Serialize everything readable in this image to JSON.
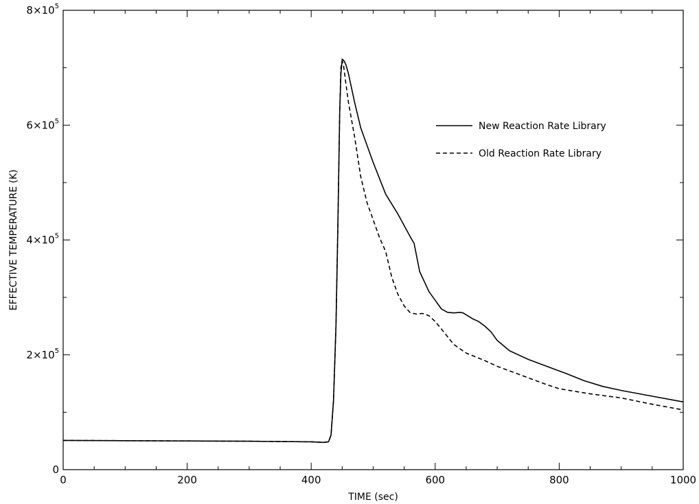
{
  "chart_data": {
    "type": "line",
    "title": "",
    "xlabel": "TIME (sec)",
    "ylabel": "EFFECTIVE TEMPERATURE (K)",
    "xlim": [
      0,
      1000
    ],
    "ylim": [
      0,
      800000
    ],
    "x_ticks": [
      {
        "value": 0,
        "label": "0"
      },
      {
        "value": 200,
        "label": "200"
      },
      {
        "value": 400,
        "label": "400"
      },
      {
        "value": 600,
        "label": "600"
      },
      {
        "value": 800,
        "label": "800"
      },
      {
        "value": 1000,
        "label": "1000"
      }
    ],
    "y_ticks": [
      {
        "value": 0,
        "mantissa": "0",
        "exponent": ""
      },
      {
        "value": 200000,
        "mantissa": "2×10",
        "exponent": "5"
      },
      {
        "value": 400000,
        "mantissa": "4×10",
        "exponent": "5"
      },
      {
        "value": 600000,
        "mantissa": "6×10",
        "exponent": "5"
      },
      {
        "value": 800000,
        "mantissa": "8×10",
        "exponent": "5"
      }
    ],
    "grid": false,
    "legend_position": "top-right",
    "series": [
      {
        "name": "New Reaction Rate Library",
        "style": "solid",
        "points": [
          [
            0,
            51000
          ],
          [
            100,
            50500
          ],
          [
            200,
            50000
          ],
          [
            300,
            49500
          ],
          [
            400,
            48500
          ],
          [
            420,
            47500
          ],
          [
            428,
            48500
          ],
          [
            432,
            60000
          ],
          [
            436,
            120000
          ],
          [
            440,
            250000
          ],
          [
            443,
            420000
          ],
          [
            446,
            620000
          ],
          [
            448,
            690000
          ],
          [
            450,
            715000
          ],
          [
            453,
            712000
          ],
          [
            456,
            705000
          ],
          [
            460,
            690000
          ],
          [
            470,
            640000
          ],
          [
            480,
            595000
          ],
          [
            500,
            535000
          ],
          [
            520,
            480000
          ],
          [
            540,
            445000
          ],
          [
            560,
            405000
          ],
          [
            566,
            394000
          ],
          [
            575,
            345000
          ],
          [
            590,
            310000
          ],
          [
            600,
            295000
          ],
          [
            610,
            280000
          ],
          [
            620,
            274000
          ],
          [
            630,
            273000
          ],
          [
            640,
            274000
          ],
          [
            645,
            273000
          ],
          [
            660,
            263000
          ],
          [
            670,
            258000
          ],
          [
            680,
            250000
          ],
          [
            690,
            240000
          ],
          [
            700,
            225000
          ],
          [
            720,
            207000
          ],
          [
            750,
            192000
          ],
          [
            780,
            180000
          ],
          [
            800,
            172000
          ],
          [
            810,
            168000
          ],
          [
            840,
            155000
          ],
          [
            870,
            145000
          ],
          [
            900,
            138000
          ],
          [
            950,
            128000
          ],
          [
            1000,
            118000
          ]
        ]
      },
      {
        "name": "Old Reaction Rate Library",
        "style": "dashed",
        "points": [
          [
            0,
            51000
          ],
          [
            100,
            50500
          ],
          [
            200,
            50000
          ],
          [
            300,
            49500
          ],
          [
            400,
            48500
          ],
          [
            420,
            47500
          ],
          [
            428,
            48500
          ],
          [
            432,
            60000
          ],
          [
            436,
            120000
          ],
          [
            440,
            250000
          ],
          [
            443,
            420000
          ],
          [
            446,
            620000
          ],
          [
            448,
            700000
          ],
          [
            450,
            712000
          ],
          [
            452,
            705000
          ],
          [
            455,
            680000
          ],
          [
            460,
            640000
          ],
          [
            470,
            580000
          ],
          [
            480,
            510000
          ],
          [
            490,
            465000
          ],
          [
            500,
            435000
          ],
          [
            510,
            405000
          ],
          [
            520,
            380000
          ],
          [
            530,
            335000
          ],
          [
            540,
            305000
          ],
          [
            550,
            285000
          ],
          [
            560,
            273000
          ],
          [
            570,
            271000
          ],
          [
            580,
            272000
          ],
          [
            590,
            268000
          ],
          [
            600,
            258000
          ],
          [
            610,
            245000
          ],
          [
            630,
            218000
          ],
          [
            650,
            203000
          ],
          [
            680,
            190000
          ],
          [
            700,
            180000
          ],
          [
            720,
            172000
          ],
          [
            750,
            160000
          ],
          [
            780,
            148000
          ],
          [
            800,
            141000
          ],
          [
            850,
            132000
          ],
          [
            900,
            125000
          ],
          [
            950,
            114000
          ],
          [
            1000,
            104000
          ]
        ]
      }
    ]
  }
}
